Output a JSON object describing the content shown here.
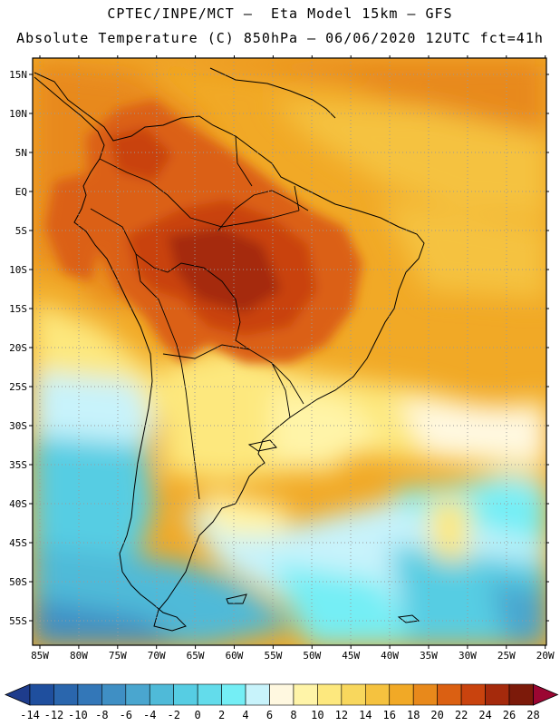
{
  "header": {
    "line1": "CPTEC/INPE/MCT –  Eta Model 15km – GFS",
    "line2": "Absolute Temperature (C) 850hPa – 06/06/2020 12UTC fct=41h"
  },
  "map": {
    "lon_labels": [
      "85W",
      "80W",
      "75W",
      "70W",
      "65W",
      "60W",
      "55W",
      "50W",
      "45W",
      "40W",
      "35W",
      "30W",
      "25W",
      "20W"
    ],
    "lat_labels": [
      "15N",
      "10N",
      "5N",
      "EQ",
      "5S",
      "10S",
      "15S",
      "20S",
      "25S",
      "30S",
      "35S",
      "40S",
      "45S",
      "50S",
      "55S"
    ],
    "lon_range": [
      -86,
      -20
    ],
    "lat_range": [
      17,
      -58
    ],
    "grid": "dotted"
  },
  "colorbar": {
    "labels": [
      "-14",
      "-12",
      "-10",
      "-8",
      "-6",
      "-4",
      "-2",
      "0",
      "2",
      "4",
      "6",
      "8",
      "10",
      "12",
      "14",
      "16",
      "18",
      "20",
      "22",
      "24",
      "26",
      "28"
    ],
    "colors": [
      "#1e3c8c",
      "#1f4f9e",
      "#2a66ad",
      "#3377b8",
      "#3f8fc4",
      "#4aa6cf",
      "#4fbad8",
      "#56cde3",
      "#63dceb",
      "#74eef5",
      "#c8f3fb",
      "#fff8e0",
      "#fff4a8",
      "#fde87e",
      "#f8d75d",
      "#f5c23f",
      "#f1a926",
      "#e8891b",
      "#db6012",
      "#c9430e",
      "#a52a0c",
      "#7c1a0a",
      "#9b0632"
    ]
  }
}
